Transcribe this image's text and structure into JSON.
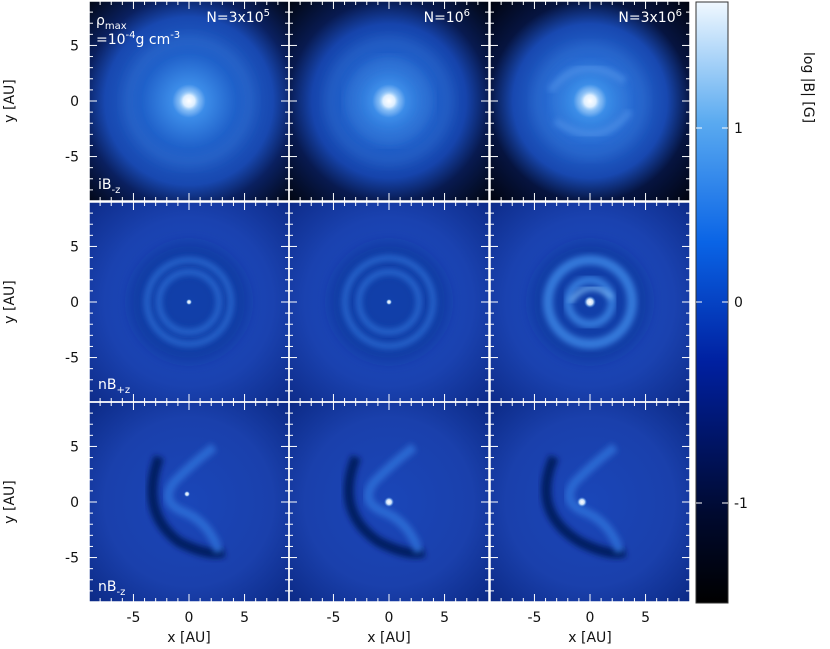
{
  "figure": {
    "panel_annotations": {
      "rho_symbol": "ρ",
      "rho_subscript": "max",
      "rho_value": "=10",
      "rho_exponent": "-4",
      "rho_unit": "g cm",
      "rho_unit_exponent": "-3",
      "resolutions": [
        {
          "base": "N=3x10",
          "exp": "5"
        },
        {
          "base": "N=10",
          "exp": "6"
        },
        {
          "base": "N=3x10",
          "exp": "6"
        }
      ],
      "row_labels": [
        {
          "base": "iB",
          "sub": "-z"
        },
        {
          "base": "nB",
          "sub": "+z"
        },
        {
          "base": "nB",
          "sub": "-z"
        }
      ]
    },
    "colorbar": {
      "label": "log |B| [G]",
      "ticks": [
        "1",
        "0",
        "-1"
      ],
      "colors": [
        "#000000",
        "#000a30",
        "#0020a0",
        "#0a64e6",
        "#5aaaf0",
        "#f0f8ff"
      ]
    }
  },
  "chart_data": {
    "type": "heatmap",
    "quantity": "log |B| [G]",
    "xlabel": "x [AU]",
    "ylabel": "y [AU]",
    "x_ticks": [
      "-5",
      "0",
      "5"
    ],
    "y_ticks": [
      "5",
      "0",
      "-5"
    ],
    "xlim": [
      -9,
      9
    ],
    "ylim": [
      -9,
      9
    ],
    "clim": [
      -1.5,
      1.5
    ],
    "rows": [
      "iB-z",
      "nB+z",
      "nB-z"
    ],
    "columns": [
      "N=3x10^5",
      "N=10^6",
      "N=3x10^6"
    ]
  }
}
